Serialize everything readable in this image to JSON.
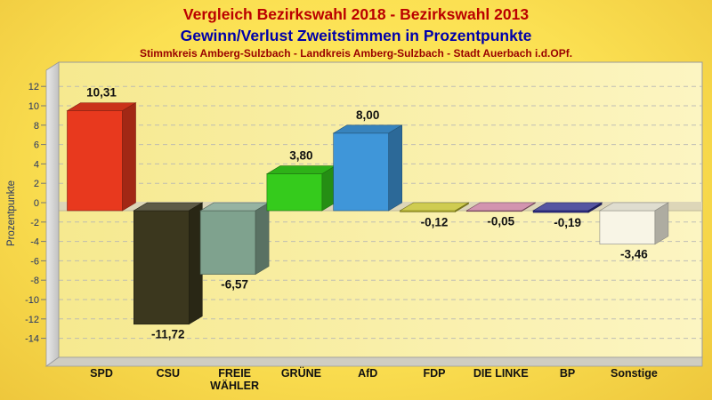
{
  "header": {
    "title": "Vergleich Bezirkswahl 2018 - Bezirkswahl 2013",
    "subtitle": "Gewinn/Verlust Zweitstimmen in Prozentpunkte",
    "region": "Stimmkreis Amberg-Sulzbach - Landkreis Amberg-Sulzbach - Stadt Auerbach i.d.OPf."
  },
  "colors": {
    "title": "#bb0000",
    "subtitle": "#0000aa",
    "region": "#990000",
    "background_center": "#ffec63",
    "background_edge": "#eec73c",
    "plot_bg_left": "#f6e98f",
    "plot_bg_right": "#fcf5c2",
    "wall_light": "#e9e9e9",
    "wall_dark": "#c2c2c2",
    "floor": "#cfcdc2",
    "zero_plane": "#ddd6b8",
    "zero_plane_edge": "#c9c2a0",
    "grid": "#b5b5b5",
    "frame": "#9a9a9a",
    "axis_text": "#223366",
    "value_text": "#111111",
    "category_text": "#111111"
  },
  "chart_data": {
    "type": "bar",
    "style": "3d-bars",
    "title": "Vergleich Bezirkswahl 2018 - Bezirkswahl 2013",
    "subtitle": "Gewinn/Verlust Zweitstimmen in Prozentpunkte",
    "categories": [
      "SPD",
      "CSU",
      "FREIE WÄHLER",
      "GRÜNE",
      "AfD",
      "FDP",
      "DIE LINKE",
      "BP",
      "Sonstige"
    ],
    "values": [
      10.31,
      -11.72,
      -6.57,
      3.8,
      8.0,
      -0.12,
      -0.05,
      -0.19,
      -3.46
    ],
    "value_labels": [
      "10,31",
      "-11,72",
      "-6,57",
      "3,80",
      "8,00",
      "-0,12",
      "-0,05",
      "-0,19",
      "-3,46"
    ],
    "bar_colors": [
      "#e8391e",
      "#3b371e",
      "#7fa28e",
      "#35cb1c",
      "#3f96d9",
      "#c4c12b",
      "#c87c9e",
      "#30308c",
      "#f8f5e6"
    ],
    "xlabel": "",
    "ylabel": "Prozentpunkte",
    "ylim": [
      -14,
      12
    ],
    "ytick_step": 2,
    "yticks": [
      12,
      10,
      8,
      6,
      4,
      2,
      0,
      -2,
      -4,
      -6,
      -8,
      -10,
      -12,
      -14
    ],
    "grid": "horizontal-dashed",
    "legend": "none"
  }
}
